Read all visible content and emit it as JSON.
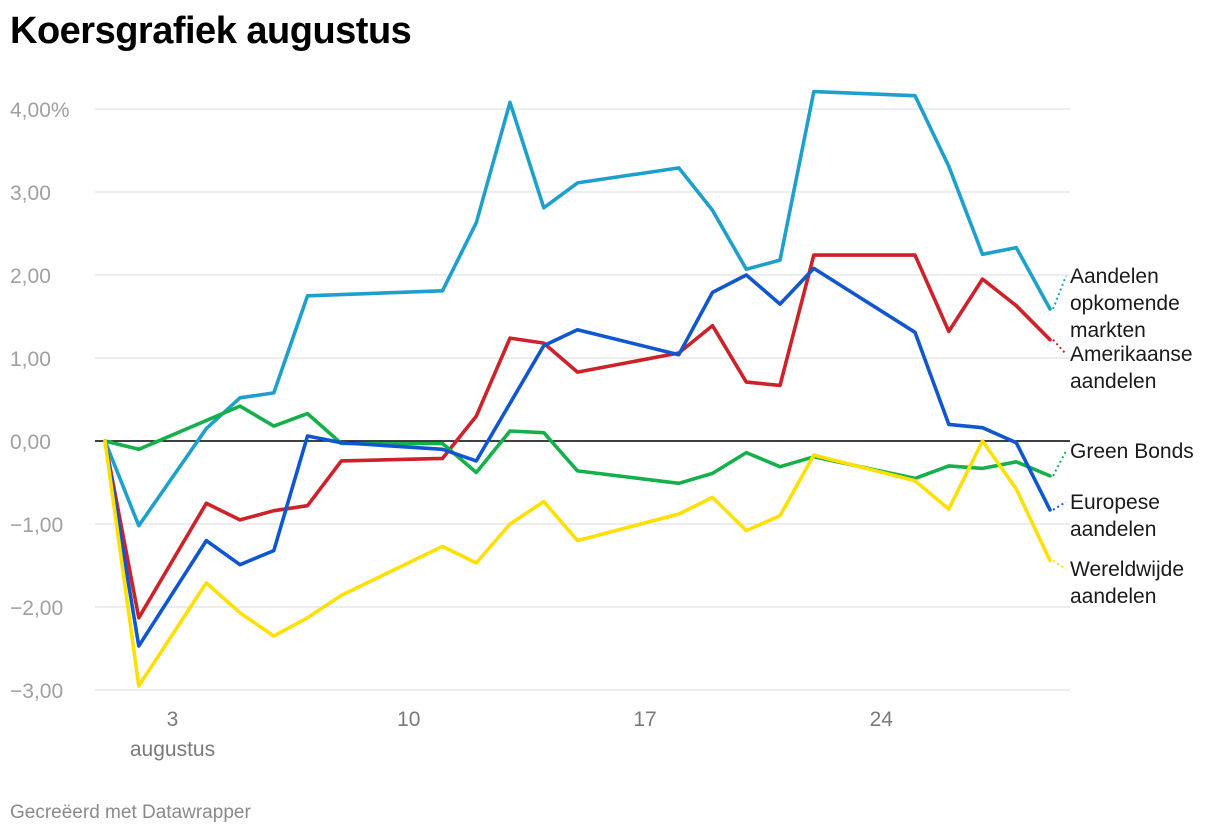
{
  "title": "Koersgrafiek augustus",
  "footer": "Gecreëerd met Datawrapper",
  "chart_data": {
    "type": "line",
    "title": "Koersgrafiek augustus",
    "ylim": [
      -3,
      4.25
    ],
    "yticks": [
      {
        "value": 4,
        "label": "4,00%"
      },
      {
        "value": 3,
        "label": "3,00"
      },
      {
        "value": 2,
        "label": "2,00"
      },
      {
        "value": 1,
        "label": "1,00"
      },
      {
        "value": 0,
        "label": "0,00"
      },
      {
        "value": -1,
        "label": "−1,00"
      },
      {
        "value": -2,
        "label": "−2,00"
      },
      {
        "value": -3,
        "label": "−3,00"
      }
    ],
    "xlim": [
      1,
      30.5
    ],
    "xticks": [
      {
        "value": 3,
        "label": "3",
        "sublabel": "augustus"
      },
      {
        "value": 10,
        "label": "10"
      },
      {
        "value": 17,
        "label": "17"
      },
      {
        "value": 24,
        "label": "24"
      }
    ],
    "grid": true,
    "legend": "direct labels at right",
    "series": [
      {
        "name": "Aandelen opkomende markten",
        "label_lines": [
          "Aandelen",
          "opkomende",
          "markten"
        ],
        "color": "#1fa0cc",
        "x": [
          1,
          2,
          4,
          5,
          6,
          7,
          11,
          12,
          13,
          14,
          15,
          18,
          19,
          20,
          21,
          22,
          25,
          26,
          27,
          28,
          29
        ],
        "y": [
          0.0,
          -1.02,
          0.15,
          0.52,
          0.58,
          1.75,
          1.81,
          2.63,
          4.08,
          2.81,
          3.11,
          3.29,
          2.78,
          2.07,
          2.18,
          4.21,
          4.16,
          3.31,
          2.25,
          2.33,
          1.59
        ]
      },
      {
        "name": "Amerikaanse aandelen",
        "label_lines": [
          "Amerikaanse",
          "aandelen"
        ],
        "color": "#cc2229",
        "x": [
          1,
          2,
          4,
          5,
          6,
          7,
          8,
          11,
          12,
          13,
          14,
          15,
          18,
          19,
          20,
          21,
          22,
          25,
          26,
          27,
          28,
          29
        ],
        "y": [
          0.0,
          -2.13,
          -0.75,
          -0.95,
          -0.84,
          -0.78,
          -0.24,
          -0.21,
          0.3,
          1.24,
          1.18,
          0.83,
          1.06,
          1.39,
          0.71,
          0.67,
          2.24,
          2.24,
          1.32,
          1.95,
          1.63,
          1.22
        ]
      },
      {
        "name": "Green Bonds",
        "label_lines": [
          "Green Bonds"
        ],
        "color": "#15b04a",
        "x": [
          1,
          2,
          5,
          6,
          7,
          8,
          11,
          12,
          13,
          14,
          15,
          18,
          19,
          20,
          21,
          22,
          25,
          26,
          27,
          28,
          29
        ],
        "y": [
          0.0,
          -0.1,
          0.42,
          0.18,
          0.33,
          -0.03,
          -0.03,
          -0.38,
          0.12,
          0.1,
          -0.36,
          -0.51,
          -0.39,
          -0.14,
          -0.31,
          -0.19,
          -0.45,
          -0.3,
          -0.33,
          -0.25,
          -0.42
        ]
      },
      {
        "name": "Europese aandelen",
        "label_lines": [
          "Europese",
          "aandelen"
        ],
        "color": "#1057cf",
        "x": [
          1,
          2,
          4,
          5,
          6,
          7,
          8,
          11,
          12,
          14,
          15,
          18,
          19,
          20,
          21,
          22,
          25,
          26,
          27,
          28,
          29
        ],
        "y": [
          0.0,
          -2.47,
          -1.2,
          -1.49,
          -1.32,
          0.06,
          -0.02,
          -0.1,
          -0.24,
          1.15,
          1.34,
          1.04,
          1.79,
          2.0,
          1.65,
          2.08,
          1.31,
          0.2,
          0.16,
          -0.02,
          -0.83
        ]
      },
      {
        "name": "Wereldwijde aandelen",
        "label_lines": [
          "Wereldwijde",
          "aandelen"
        ],
        "color": "#ffe000",
        "x": [
          1,
          2,
          4,
          5,
          6,
          7,
          8,
          11,
          12,
          13,
          14,
          15,
          18,
          19,
          20,
          21,
          22,
          25,
          26,
          27,
          28,
          29
        ],
        "y": [
          0.0,
          -2.95,
          -1.71,
          -2.07,
          -2.35,
          -2.13,
          -1.86,
          -1.27,
          -1.47,
          -1.0,
          -0.73,
          -1.2,
          -0.88,
          -0.68,
          -1.08,
          -0.9,
          -0.17,
          -0.48,
          -0.82,
          0.0,
          -0.58,
          -1.44
        ]
      }
    ]
  }
}
